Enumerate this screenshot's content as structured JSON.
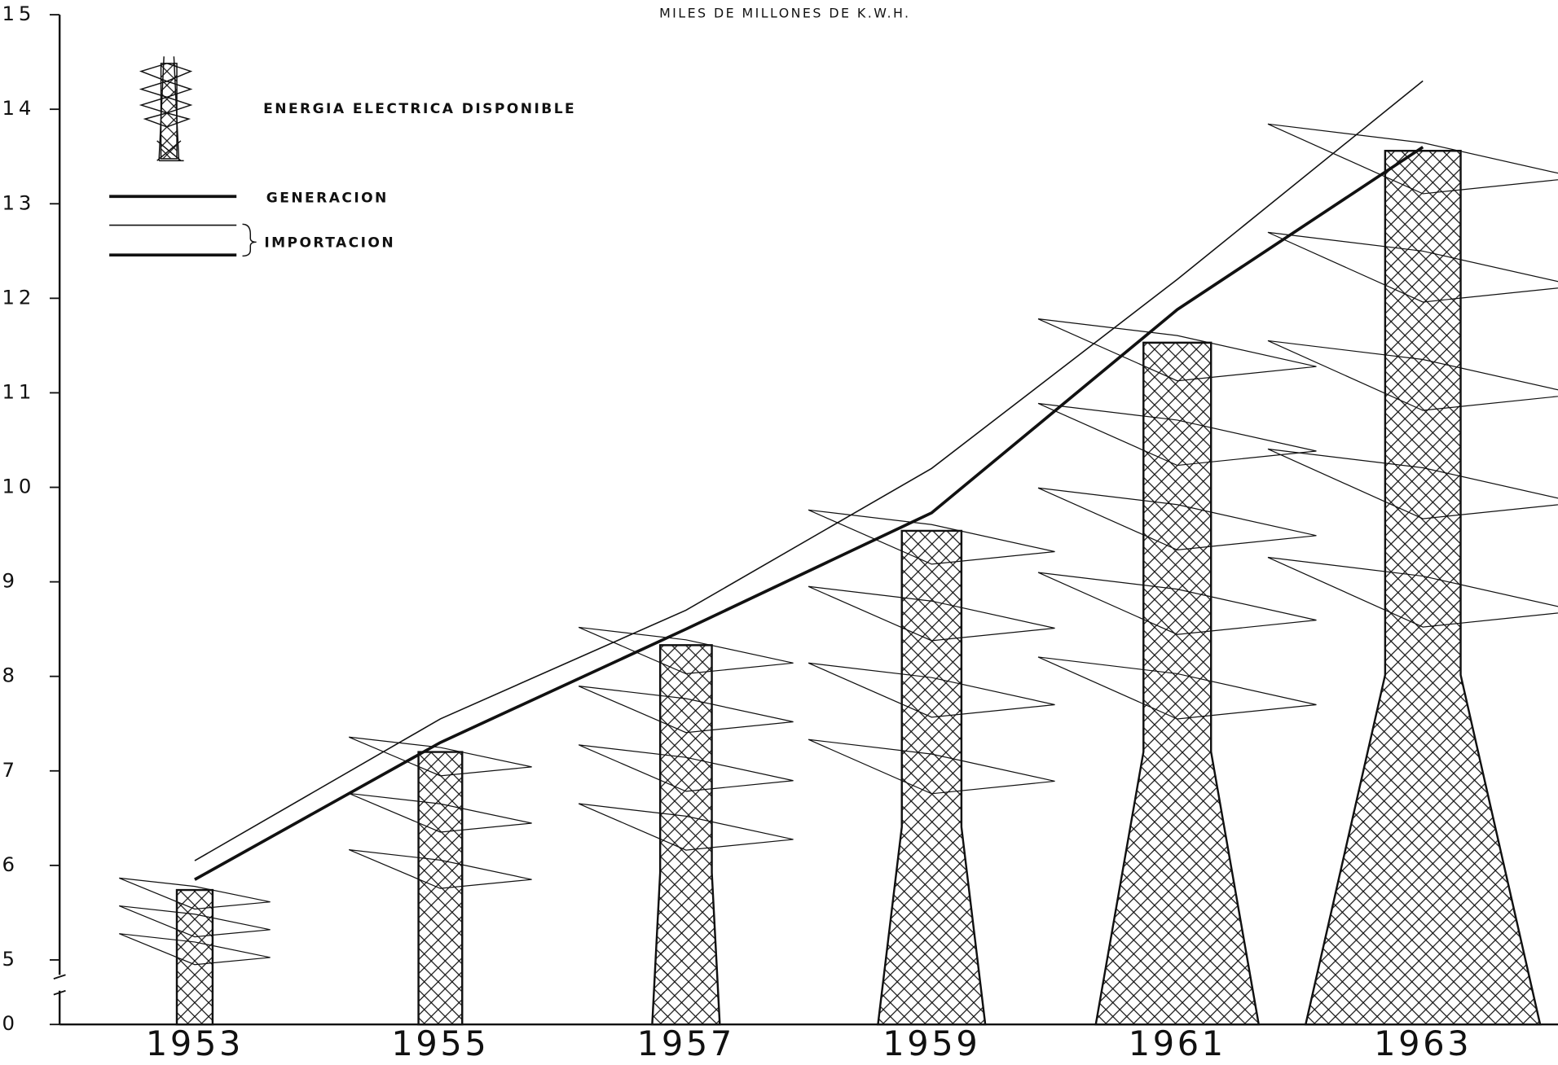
{
  "chart_data": {
    "type": "line",
    "title": "MILES DE MILLONES DE K.W.H.",
    "x": [
      1953,
      1955,
      1957,
      1959,
      1961,
      1963
    ],
    "xlim": [
      1951.9,
      1964.1
    ],
    "xticks": [
      1953,
      1955,
      1957,
      1959,
      1961,
      1963
    ],
    "ylim": [
      0,
      15
    ],
    "yticks": [
      0,
      5,
      6,
      7,
      8,
      9,
      10,
      11,
      12,
      13,
      14,
      15
    ],
    "axis_break": [
      0,
      5
    ],
    "series": [
      {
        "name": "ENERGIA ELECTRICA DISPONIBLE",
        "style": "tower",
        "color": "#111111",
        "values": [
          5.74,
          7.2,
          8.33,
          9.54,
          11.53,
          13.56
        ]
      },
      {
        "name": "GENERACION",
        "style": "line",
        "line_width": 3,
        "color": "#111111",
        "values": [
          5.85,
          7.3,
          8.5,
          9.73,
          11.88,
          13.6
        ]
      },
      {
        "name": "IMPORTACION",
        "style": "line",
        "line_width": 1.3,
        "color": "#111111",
        "values": [
          6.05,
          7.55,
          8.7,
          10.2,
          12.2,
          14.3
        ]
      }
    ]
  }
}
